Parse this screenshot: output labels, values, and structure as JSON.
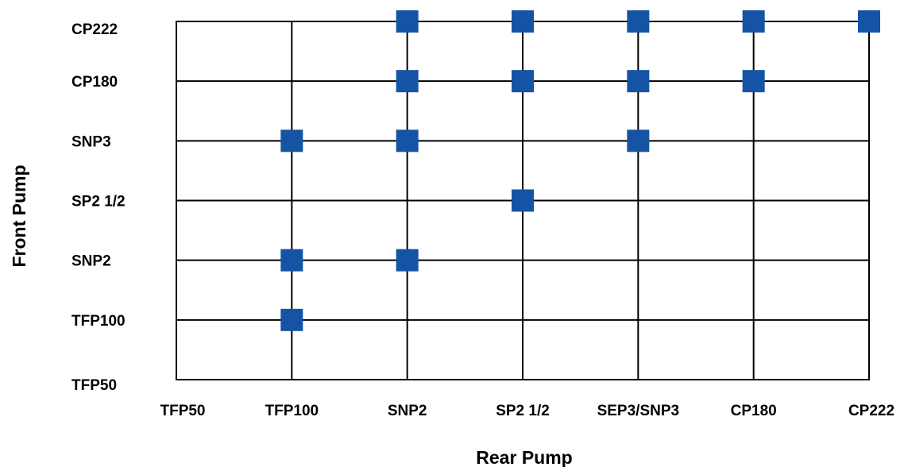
{
  "chart_data": {
    "type": "scatter",
    "title": "",
    "xlabel": "Rear Pump",
    "ylabel": "Front Pump",
    "x_categories": [
      "TFP50",
      "TFP100",
      "SNP2",
      "SP2  1/2",
      "SEP3/SNP3",
      "CP180",
      "CP222"
    ],
    "y_categories": [
      "TFP50",
      "TFP100",
      "SNP2",
      "SP2  1/2",
      "SNP3",
      "CP180",
      "CP222"
    ],
    "grid": true,
    "marker": "square",
    "marker_color": "#1554a5",
    "points": [
      {
        "x": "TFP100",
        "y": "TFP100"
      },
      {
        "x": "TFP100",
        "y": "SNP2"
      },
      {
        "x": "SNP2",
        "y": "SNP2"
      },
      {
        "x": "SP2  1/2",
        "y": "SP2  1/2"
      },
      {
        "x": "TFP100",
        "y": "SNP3"
      },
      {
        "x": "SNP2",
        "y": "SNP3"
      },
      {
        "x": "SEP3/SNP3",
        "y": "SNP3"
      },
      {
        "x": "SNP2",
        "y": "CP180"
      },
      {
        "x": "SP2  1/2",
        "y": "CP180"
      },
      {
        "x": "SEP3/SNP3",
        "y": "CP180"
      },
      {
        "x": "CP180",
        "y": "CP180"
      },
      {
        "x": "SNP2",
        "y": "CP222"
      },
      {
        "x": "SP2  1/2",
        "y": "CP222"
      },
      {
        "x": "SEP3/SNP3",
        "y": "CP222"
      },
      {
        "x": "CP180",
        "y": "CP222"
      },
      {
        "x": "CP222",
        "y": "CP222"
      }
    ]
  }
}
